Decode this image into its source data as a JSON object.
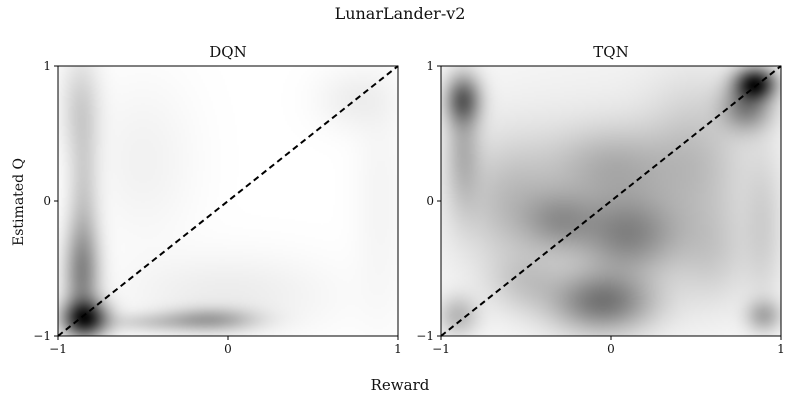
{
  "figure": {
    "suptitle": "LunarLander-v2",
    "xlabel": "Reward",
    "ylabel": "Estimated Q"
  },
  "chart_data": [
    {
      "type": "heatmap",
      "title": "DQN",
      "xlim": [
        -1,
        1
      ],
      "ylim": [
        -1,
        1
      ],
      "xticks": [
        -1,
        0,
        1
      ],
      "xtick_labels": [
        "−1",
        "0",
        "1"
      ],
      "yticks": [
        -1,
        0,
        1
      ],
      "ytick_labels": [
        "−1",
        "0",
        "1"
      ],
      "colormap": "Greys",
      "reference_line": {
        "from": [
          -1,
          -1
        ],
        "to": [
          1,
          1
        ],
        "style": "dashed",
        "color": "#000000"
      },
      "density_blobs": [
        {
          "x": -0.84,
          "y": -0.87,
          "sx": 0.09,
          "sy": 0.09,
          "w": 1.0
        },
        {
          "x": -0.86,
          "y": -0.55,
          "sx": 0.07,
          "sy": 0.25,
          "w": 0.45
        },
        {
          "x": -0.85,
          "y": 0.0,
          "sx": 0.06,
          "sy": 0.45,
          "w": 0.18
        },
        {
          "x": -0.87,
          "y": 0.7,
          "sx": 0.08,
          "sy": 0.25,
          "w": 0.14
        },
        {
          "x": -0.1,
          "y": -0.88,
          "sx": 0.18,
          "sy": 0.06,
          "w": 0.35
        },
        {
          "x": -0.45,
          "y": -0.9,
          "sx": 0.2,
          "sy": 0.05,
          "w": 0.15
        },
        {
          "x": 0.0,
          "y": -0.7,
          "sx": 0.4,
          "sy": 0.2,
          "w": 0.06
        },
        {
          "x": 0.75,
          "y": 0.75,
          "sx": 0.15,
          "sy": 0.15,
          "w": 0.05
        },
        {
          "x": 0.9,
          "y": 0.0,
          "sx": 0.1,
          "sy": 0.6,
          "w": 0.03
        },
        {
          "x": -0.5,
          "y": 0.3,
          "sx": 0.2,
          "sy": 0.4,
          "w": 0.04
        }
      ]
    },
    {
      "type": "heatmap",
      "title": "TQN",
      "xlim": [
        -1,
        1
      ],
      "ylim": [
        -1,
        1
      ],
      "xticks": [
        -1,
        0,
        1
      ],
      "xtick_labels": [
        "−1",
        "0",
        "1"
      ],
      "yticks": [
        -1,
        0,
        1
      ],
      "ytick_labels": [
        "−1",
        "0",
        "1"
      ],
      "colormap": "Greys",
      "reference_line": {
        "from": [
          -1,
          -1
        ],
        "to": [
          1,
          1
        ],
        "style": "dashed",
        "color": "#000000"
      },
      "density_blobs": [
        {
          "x": 0.85,
          "y": 0.87,
          "sx": 0.08,
          "sy": 0.08,
          "w": 1.0
        },
        {
          "x": 0.8,
          "y": 0.7,
          "sx": 0.1,
          "sy": 0.12,
          "w": 0.5
        },
        {
          "x": -0.87,
          "y": 0.75,
          "sx": 0.07,
          "sy": 0.12,
          "w": 0.6
        },
        {
          "x": -0.87,
          "y": 0.4,
          "sx": 0.07,
          "sy": 0.3,
          "w": 0.25
        },
        {
          "x": -0.05,
          "y": -0.75,
          "sx": 0.2,
          "sy": 0.15,
          "w": 0.55
        },
        {
          "x": 0.1,
          "y": -0.25,
          "sx": 0.2,
          "sy": 0.2,
          "w": 0.45
        },
        {
          "x": -0.3,
          "y": -0.15,
          "sx": 0.15,
          "sy": 0.15,
          "w": 0.3
        },
        {
          "x": 0.0,
          "y": 0.25,
          "sx": 0.25,
          "sy": 0.2,
          "w": 0.25
        },
        {
          "x": -0.6,
          "y": 0.0,
          "sx": 0.2,
          "sy": 0.3,
          "w": 0.2
        },
        {
          "x": 0.5,
          "y": 0.3,
          "sx": 0.2,
          "sy": 0.4,
          "w": 0.18
        },
        {
          "x": 0.9,
          "y": -0.85,
          "sx": 0.07,
          "sy": 0.08,
          "w": 0.3
        },
        {
          "x": 0.9,
          "y": -0.2,
          "sx": 0.08,
          "sy": 0.4,
          "w": 0.12
        },
        {
          "x": -0.9,
          "y": -0.85,
          "sx": 0.08,
          "sy": 0.1,
          "w": 0.25
        },
        {
          "x": -0.5,
          "y": -0.6,
          "sx": 0.15,
          "sy": 0.15,
          "w": 0.15
        },
        {
          "x": 0.6,
          "y": -0.4,
          "sx": 0.15,
          "sy": 0.25,
          "w": 0.12
        },
        {
          "x": 0.0,
          "y": 0.0,
          "sx": 0.8,
          "sy": 0.8,
          "w": 0.08
        }
      ]
    }
  ]
}
